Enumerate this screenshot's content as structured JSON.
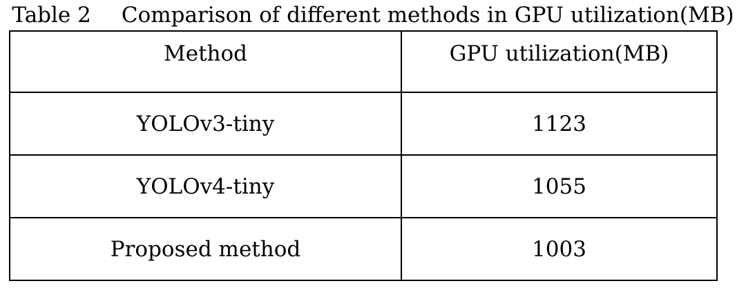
{
  "caption": {
    "label": "Table 2",
    "title": "Comparison of different methods in GPU utilization(MB)"
  },
  "table": {
    "headers": [
      "Method",
      "GPU utilization(MB)"
    ],
    "rows": [
      [
        "YOLOv3-tiny",
        "1123"
      ],
      [
        "YOLOv4-tiny",
        "1055"
      ],
      [
        "Proposed method",
        "1003"
      ]
    ]
  }
}
